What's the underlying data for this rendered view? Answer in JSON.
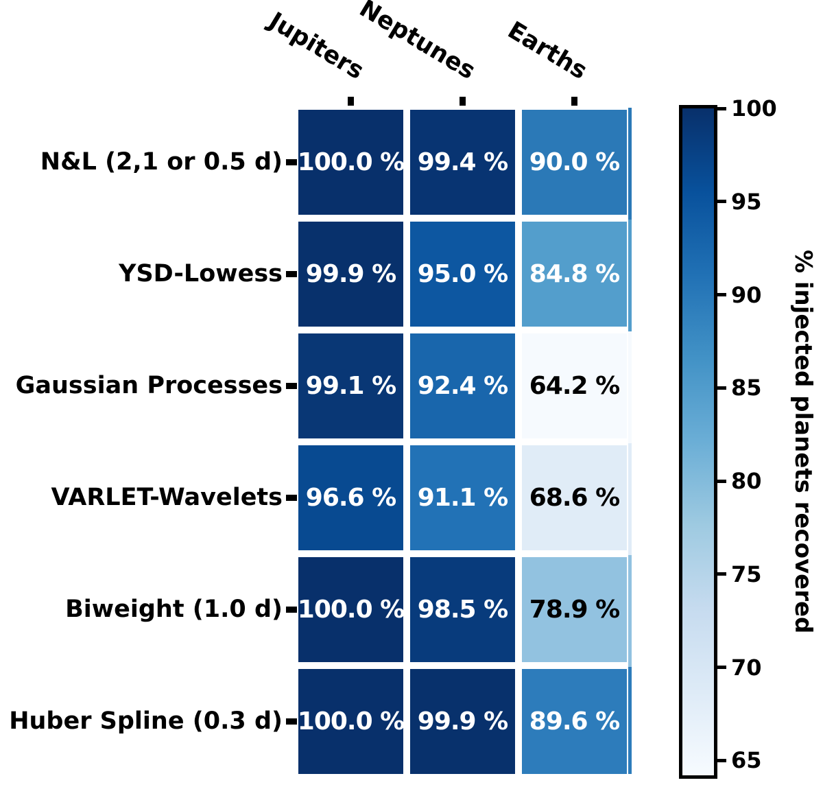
{
  "chart_data": {
    "type": "heatmap",
    "title": "",
    "columns": [
      "Jupiters",
      "Neptunes",
      "Earths"
    ],
    "rows": [
      "N&L (2,1 or 0.5 d)",
      "YSD-Lowess",
      "Gaussian Processes",
      "VARLET-Wavelets",
      "Biweight (1.0 d)",
      "Huber Spline (0.3 d)"
    ],
    "values": [
      [
        100.0,
        99.4,
        90.0
      ],
      [
        99.9,
        95.0,
        84.8
      ],
      [
        99.1,
        92.4,
        64.2
      ],
      [
        96.6,
        91.1,
        68.6
      ],
      [
        100.0,
        98.5,
        78.9
      ],
      [
        100.0,
        99.9,
        89.6
      ]
    ],
    "cell_labels": [
      [
        "100.0 %",
        "99.4 %",
        "90.0 %"
      ],
      [
        "99.9 %",
        "95.0 %",
        "84.8 %"
      ],
      [
        "99.1 %",
        "92.4 %",
        "64.2 %"
      ],
      [
        "96.6 %",
        "91.1 %",
        "68.6 %"
      ],
      [
        "100.0 %",
        "98.5 %",
        "78.9 %"
      ],
      [
        "100.0 %",
        "99.9 %",
        "89.6 %"
      ]
    ],
    "cell_colors": [
      [
        "#08306b",
        "#083472",
        "#2b79b7"
      ],
      [
        "#08316c",
        "#0d57a1",
        "#539ecc"
      ],
      [
        "#093775",
        "#1966ac",
        "#f6fafe"
      ],
      [
        "#084a91",
        "#2272b6",
        "#e0ecf7"
      ],
      [
        "#08306b",
        "#083b7c",
        "#92c2e0"
      ],
      [
        "#08306b",
        "#08316c",
        "#2d7cbb"
      ]
    ],
    "cell_text_colors": [
      [
        "#ffffff",
        "#ffffff",
        "#ffffff"
      ],
      [
        "#ffffff",
        "#ffffff",
        "#ffffff"
      ],
      [
        "#ffffff",
        "#ffffff",
        "#000000"
      ],
      [
        "#ffffff",
        "#ffffff",
        "#000000"
      ],
      [
        "#ffffff",
        "#ffffff",
        "#000000"
      ],
      [
        "#ffffff",
        "#ffffff",
        "#ffffff"
      ]
    ],
    "colormap": "Blues",
    "grid": false,
    "legend_position": "right-colorbar",
    "colorbar": {
      "label": "% injected planets recovered",
      "ticks": [
        100,
        95,
        90,
        85,
        80,
        75,
        70,
        65
      ],
      "vmin": 64.2,
      "vmax": 100,
      "top_color": "#08306b",
      "bottom_color": "#f7fbff"
    }
  },
  "figure": {
    "background_color": "#ffffff",
    "tick_color": "#000000",
    "label_color": "#000000"
  }
}
